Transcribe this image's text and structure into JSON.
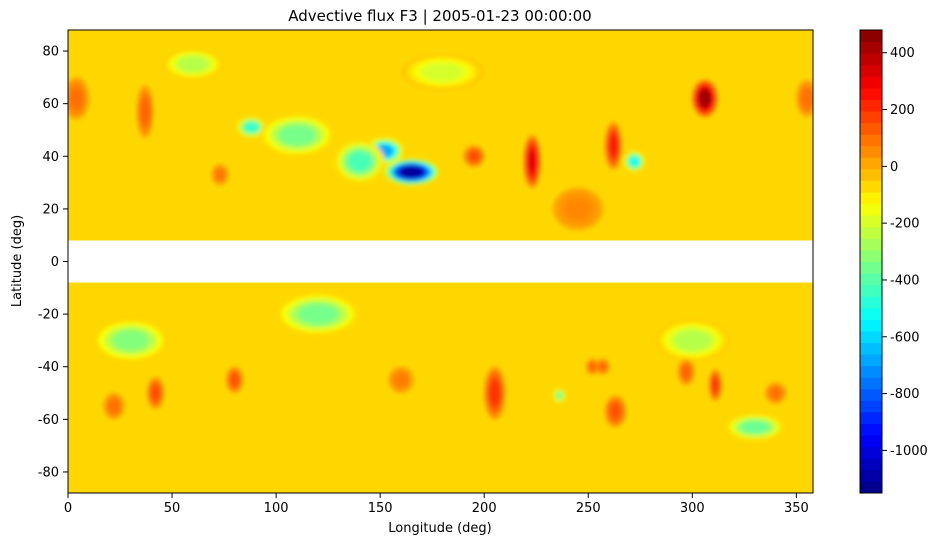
{
  "chart_data": {
    "type": "heatmap",
    "title": "Advective flux F3 | 2005-01-23 00:00:00",
    "xlabel": "Longitude (deg)",
    "ylabel": "Latitude (deg)",
    "xlim": [
      0,
      358
    ],
    "ylim": [
      -88,
      88
    ],
    "x_ticks": [
      "0",
      "50",
      "100",
      "150",
      "200",
      "250",
      "300",
      "350"
    ],
    "y_ticks": [
      "-80",
      "-60",
      "-40",
      "-20",
      "0",
      "20",
      "40",
      "60",
      "80"
    ],
    "masked_lat_band": [
      -8,
      8
    ],
    "colormap": "jet",
    "colorbar": {
      "range": [
        -1150,
        480
      ],
      "ticks": [
        "-1000",
        "-800",
        "-600",
        "-400",
        "-200",
        "0",
        "200",
        "400"
      ]
    },
    "features": [
      {
        "lon": 165,
        "lat": 34,
        "value": -1100,
        "r_lon": 13,
        "r_lat": 5
      },
      {
        "lon": 152,
        "lat": 42,
        "value": -680,
        "r_lon": 9,
        "r_lat": 5
      },
      {
        "lon": 140,
        "lat": 38,
        "value": -420,
        "r_lon": 12,
        "r_lat": 8
      },
      {
        "lon": 88,
        "lat": 51,
        "value": -460,
        "r_lon": 7,
        "r_lat": 4
      },
      {
        "lon": 110,
        "lat": 48,
        "value": -350,
        "r_lon": 18,
        "r_lat": 8
      },
      {
        "lon": 272,
        "lat": 38,
        "value": -520,
        "r_lon": 5,
        "r_lat": 4
      },
      {
        "lon": 306,
        "lat": 62,
        "value": 430,
        "r_lon": 6,
        "r_lat": 7
      },
      {
        "lon": 223,
        "lat": 38,
        "value": 320,
        "r_lon": 4,
        "r_lat": 10
      },
      {
        "lon": 195,
        "lat": 40,
        "value": 160,
        "r_lon": 5,
        "r_lat": 4
      },
      {
        "lon": 262,
        "lat": 44,
        "value": 240,
        "r_lon": 4,
        "r_lat": 9
      },
      {
        "lon": 37,
        "lat": 57,
        "value": 120,
        "r_lon": 4,
        "r_lat": 10
      },
      {
        "lon": 4,
        "lat": 62,
        "value": 100,
        "r_lon": 6,
        "r_lat": 8
      },
      {
        "lon": 355,
        "lat": 62,
        "value": 100,
        "r_lon": 5,
        "r_lat": 7
      },
      {
        "lon": 73,
        "lat": 33,
        "value": 90,
        "r_lon": 4,
        "r_lat": 4
      },
      {
        "lon": 245,
        "lat": 20,
        "value": 60,
        "r_lon": 12,
        "r_lat": 8
      },
      {
        "lon": 60,
        "lat": 75,
        "value": -250,
        "r_lon": 15,
        "r_lat": 6
      },
      {
        "lon": 180,
        "lat": 72,
        "value": -200,
        "r_lon": 20,
        "r_lat": 7
      },
      {
        "lon": 120,
        "lat": -20,
        "value": -350,
        "r_lon": 20,
        "r_lat": 8
      },
      {
        "lon": 30,
        "lat": -30,
        "value": -330,
        "r_lon": 18,
        "r_lat": 8
      },
      {
        "lon": 330,
        "lat": -63,
        "value": -370,
        "r_lon": 14,
        "r_lat": 5
      },
      {
        "lon": 300,
        "lat": -30,
        "value": -250,
        "r_lon": 18,
        "r_lat": 8
      },
      {
        "lon": 205,
        "lat": -50,
        "value": 200,
        "r_lon": 5,
        "r_lat": 10
      },
      {
        "lon": 42,
        "lat": -50,
        "value": 160,
        "r_lon": 4,
        "r_lat": 6
      },
      {
        "lon": 80,
        "lat": -45,
        "value": 150,
        "r_lon": 4,
        "r_lat": 5
      },
      {
        "lon": 22,
        "lat": -55,
        "value": 100,
        "r_lon": 5,
        "r_lat": 5
      },
      {
        "lon": 263,
        "lat": -57,
        "value": 150,
        "r_lon": 5,
        "r_lat": 6
      },
      {
        "lon": 311,
        "lat": -47,
        "value": 200,
        "r_lon": 3,
        "r_lat": 6
      },
      {
        "lon": 297,
        "lat": -42,
        "value": 120,
        "r_lon": 4,
        "r_lat": 5
      },
      {
        "lon": 252,
        "lat": -40,
        "value": 120,
        "r_lon": 3,
        "r_lat": 3
      },
      {
        "lon": 257,
        "lat": -40,
        "value": 120,
        "r_lon": 3,
        "r_lat": 3
      },
      {
        "lon": 340,
        "lat": -50,
        "value": 100,
        "r_lon": 5,
        "r_lat": 4
      },
      {
        "lon": 236,
        "lat": -51,
        "value": -350,
        "r_lon": 3,
        "r_lat": 3
      },
      {
        "lon": 160,
        "lat": -45,
        "value": 80,
        "r_lon": 6,
        "r_lat": 5
      }
    ]
  }
}
